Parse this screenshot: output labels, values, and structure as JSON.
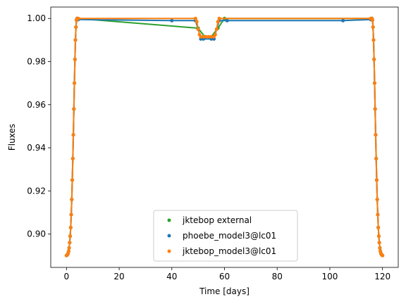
{
  "chart_data": {
    "type": "scatter",
    "xlabel": "Time [days]",
    "ylabel": "Fluxes",
    "xlim": [
      -5.98,
      125.98
    ],
    "ylim": [
      0.8845,
      1.0053
    ],
    "xticks": [
      0,
      20,
      40,
      60,
      80,
      100,
      120
    ],
    "yticks": [
      0.9,
      0.92,
      0.94,
      0.96,
      0.98,
      1.0
    ],
    "xtick_labels": [
      "0",
      "20",
      "40",
      "60",
      "80",
      "100",
      "120"
    ],
    "ytick_labels": [
      "0.90",
      "0.92",
      "0.94",
      "0.96",
      "0.98",
      "1.00"
    ],
    "grid": false,
    "legend_position": "bottom-center",
    "series": [
      {
        "name": "jktebop external",
        "color": "#2ca02c",
        "marker": "point",
        "x": [
          0,
          0.2,
          0.4,
          0.6,
          0.8,
          1.0,
          1.2,
          1.4,
          1.6,
          1.8,
          2.0,
          2.2,
          2.4,
          2.6,
          2.8,
          3.0,
          3.2,
          3.4,
          3.6,
          3.8,
          4.0,
          50.0,
          52.5,
          55.0,
          57.5,
          60.0,
          116.0,
          116.2,
          116.4,
          116.6,
          116.8,
          117.0,
          117.2,
          117.4,
          117.6,
          117.8,
          118.0,
          118.2,
          118.4,
          118.6,
          118.8,
          119.0,
          119.2,
          119.4,
          119.6,
          119.8,
          120.0
        ],
        "y": [
          0.89,
          0.8902,
          0.8905,
          0.891,
          0.892,
          0.8935,
          0.896,
          0.899,
          0.903,
          0.909,
          0.916,
          0.925,
          0.935,
          0.946,
          0.958,
          0.97,
          0.981,
          0.99,
          0.996,
          0.9992,
          1.0,
          0.9955,
          0.9915,
          0.9915,
          0.9955,
          1.0,
          1.0,
          0.9992,
          0.996,
          0.99,
          0.981,
          0.97,
          0.958,
          0.946,
          0.935,
          0.925,
          0.916,
          0.909,
          0.903,
          0.899,
          0.896,
          0.8935,
          0.892,
          0.891,
          0.8905,
          0.8902,
          0.89
        ]
      },
      {
        "name": "phoebe_model3@lc01",
        "color": "#1f77b4",
        "marker": "point",
        "x": [
          0,
          0.2,
          0.4,
          0.6,
          0.8,
          1.0,
          1.2,
          1.4,
          1.6,
          1.8,
          2.0,
          2.2,
          2.4,
          2.6,
          2.8,
          3.0,
          3.2,
          3.4,
          3.6,
          3.8,
          4.0,
          4.5,
          40.0,
          49.0,
          50.0,
          51.0,
          52.0,
          55.0,
          56.0,
          57.0,
          58.0,
          61.0,
          105.0,
          115.5,
          116.0,
          116.2,
          116.4,
          116.6,
          116.8,
          117.0,
          117.2,
          117.4,
          117.6,
          117.8,
          118.0,
          118.2,
          118.4,
          118.6,
          118.8,
          119.0,
          119.2,
          119.4,
          119.6,
          119.8,
          120.0
        ],
        "y": [
          0.89,
          0.8902,
          0.8905,
          0.891,
          0.892,
          0.8935,
          0.896,
          0.899,
          0.903,
          0.909,
          0.916,
          0.925,
          0.935,
          0.946,
          0.958,
          0.97,
          0.981,
          0.99,
          0.996,
          0.9992,
          1.0,
          0.9995,
          0.999,
          0.999,
          0.995,
          0.9905,
          0.9905,
          0.9905,
          0.9905,
          0.995,
          0.999,
          0.999,
          0.999,
          0.9995,
          1.0,
          0.9992,
          0.996,
          0.99,
          0.981,
          0.97,
          0.958,
          0.946,
          0.935,
          0.925,
          0.916,
          0.909,
          0.903,
          0.899,
          0.896,
          0.8935,
          0.892,
          0.891,
          0.8905,
          0.8902,
          0.89
        ]
      },
      {
        "name": "jktebop_model3@lc01",
        "color": "#ff7f0e",
        "marker": "point",
        "x": [
          0,
          0.2,
          0.4,
          0.6,
          0.8,
          1.0,
          1.2,
          1.4,
          1.6,
          1.8,
          2.0,
          2.2,
          2.4,
          2.6,
          2.8,
          3.0,
          3.2,
          3.4,
          3.6,
          3.8,
          4.0,
          4.5,
          49.0,
          49.5,
          50.0,
          50.5,
          51.0,
          52.0,
          53.0,
          54.0,
          55.0,
          56.0,
          56.5,
          57.0,
          57.5,
          58.0,
          115.5,
          116.0,
          116.2,
          116.4,
          116.6,
          116.8,
          117.0,
          117.2,
          117.4,
          117.6,
          117.8,
          118.0,
          118.2,
          118.4,
          118.6,
          118.8,
          119.0,
          119.2,
          119.4,
          119.6,
          119.8,
          120.0
        ],
        "y": [
          0.89,
          0.8902,
          0.8905,
          0.891,
          0.892,
          0.8935,
          0.896,
          0.899,
          0.903,
          0.909,
          0.916,
          0.925,
          0.935,
          0.946,
          0.958,
          0.97,
          0.981,
          0.99,
          0.996,
          0.9992,
          1.0,
          1.0,
          1.0,
          0.9985,
          0.995,
          0.9925,
          0.9915,
          0.9915,
          0.9915,
          0.9915,
          0.9915,
          0.9915,
          0.9925,
          0.995,
          0.9985,
          1.0,
          1.0,
          1.0,
          0.9992,
          0.996,
          0.99,
          0.981,
          0.97,
          0.958,
          0.946,
          0.935,
          0.925,
          0.916,
          0.909,
          0.903,
          0.899,
          0.896,
          0.8935,
          0.892,
          0.891,
          0.8905,
          0.8902,
          0.89
        ]
      }
    ]
  }
}
